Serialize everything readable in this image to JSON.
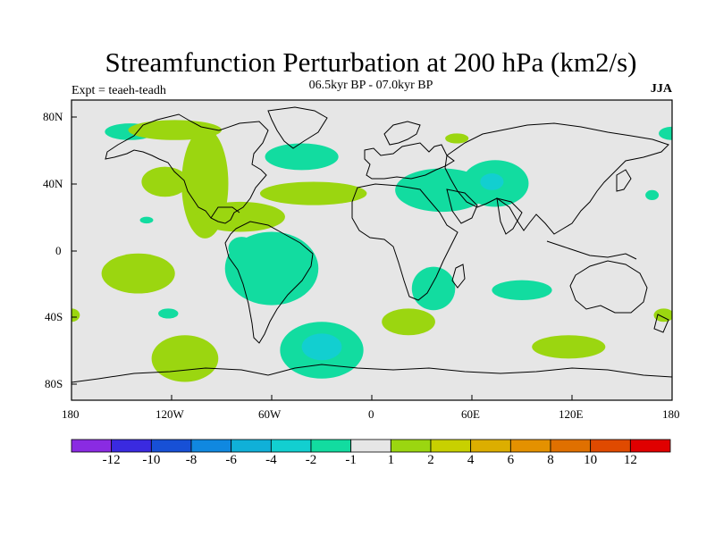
{
  "title": "Streamfunction Perturbation at 200 hPa (km2/s)",
  "subtitle": "06.5kyr BP - 07.0kyr BP",
  "experiment": "Expt = teaeh-teadh",
  "season": "JJA",
  "map": {
    "projection": "cylindrical equidistant",
    "lon_range": [
      -180,
      180
    ],
    "lat_range": [
      -90,
      90
    ],
    "ocean_color": "#e6e6e6",
    "lat_ticks": [
      "80N",
      "40N",
      "0",
      "40S",
      "80S"
    ],
    "lon_ticks": [
      "180",
      "120W",
      "60W",
      "0",
      "60E",
      "120E",
      "180"
    ]
  },
  "colorbar": {
    "colors": [
      "#8a2be2",
      "#3a2ae0",
      "#1750d6",
      "#1088e0",
      "#10b0d8",
      "#12cfd0",
      "#12dca0",
      "#e6e6e6",
      "#9bd610",
      "#c8d000",
      "#dcae00",
      "#e49100",
      "#e07000",
      "#e04a00",
      "#e00000"
    ],
    "labels": [
      "-12",
      "-10",
      "-8",
      "-6",
      "-4",
      "-2",
      "-1",
      "1",
      "2",
      "4",
      "6",
      "8",
      "10",
      "12"
    ]
  },
  "anomalies": [
    {
      "color": "green",
      "lon": -145,
      "lat": 71,
      "rx": 15,
      "ry": 5
    },
    {
      "color": "lime",
      "lon": -118,
      "lat": 72,
      "rx": 28,
      "ry": 6
    },
    {
      "color": "lime",
      "lon": -124,
      "lat": 41,
      "rx": 14,
      "ry": 9
    },
    {
      "color": "lime",
      "lon": -100,
      "lat": 40,
      "rx": 14,
      "ry": 33
    },
    {
      "color": "lime",
      "lon": -79,
      "lat": 20,
      "rx": 27,
      "ry": 9
    },
    {
      "color": "green",
      "lon": -135,
      "lat": 18,
      "rx": 4,
      "ry": 2
    },
    {
      "color": "green",
      "lon": -42,
      "lat": 56,
      "rx": 22,
      "ry": 8
    },
    {
      "color": "lime",
      "lon": -35,
      "lat": 34,
      "rx": 32,
      "ry": 7
    },
    {
      "color": "lime",
      "lon": 51,
      "lat": 67,
      "rx": 7,
      "ry": 3
    },
    {
      "color": "green",
      "lon": 42,
      "lat": 36,
      "rx": 28,
      "ry": 13
    },
    {
      "color": "green",
      "lon": 74,
      "lat": 40,
      "rx": 20,
      "ry": 14
    },
    {
      "color": "cyan",
      "lon": 72,
      "lat": 41,
      "rx": 7,
      "ry": 5
    },
    {
      "color": "green",
      "lon": 168,
      "lat": 33,
      "rx": 4,
      "ry": 3
    },
    {
      "color": "green",
      "lon": 180,
      "lat": 70,
      "rx": 8,
      "ry": 4
    },
    {
      "color": "green",
      "lon": -78,
      "lat": 1,
      "rx": 8,
      "ry": 7
    },
    {
      "color": "green",
      "lon": -60,
      "lat": -11,
      "rx": 28,
      "ry": 22
    },
    {
      "color": "lime",
      "lon": -140,
      "lat": -14,
      "rx": 22,
      "ry": 12
    },
    {
      "color": "green",
      "lon": -122,
      "lat": -38,
      "rx": 6,
      "ry": 3
    },
    {
      "color": "lime",
      "lon": -180,
      "lat": -39,
      "rx": 5,
      "ry": 4
    },
    {
      "color": "lime",
      "lon": -112,
      "lat": -65,
      "rx": 20,
      "ry": 14
    },
    {
      "color": "green",
      "lon": -30,
      "lat": -60,
      "rx": 25,
      "ry": 17
    },
    {
      "color": "cyan",
      "lon": -30,
      "lat": -58,
      "rx": 12,
      "ry": 8
    },
    {
      "color": "lime",
      "lon": 22,
      "lat": -43,
      "rx": 16,
      "ry": 8
    },
    {
      "color": "green",
      "lon": 37,
      "lat": -23,
      "rx": 13,
      "ry": 13
    },
    {
      "color": "green",
      "lon": 90,
      "lat": -24,
      "rx": 18,
      "ry": 6
    },
    {
      "color": "lime",
      "lon": 118,
      "lat": -58,
      "rx": 22,
      "ry": 7
    },
    {
      "color": "lime",
      "lon": 175,
      "lat": -39,
      "rx": 6,
      "ry": 4
    }
  ]
}
